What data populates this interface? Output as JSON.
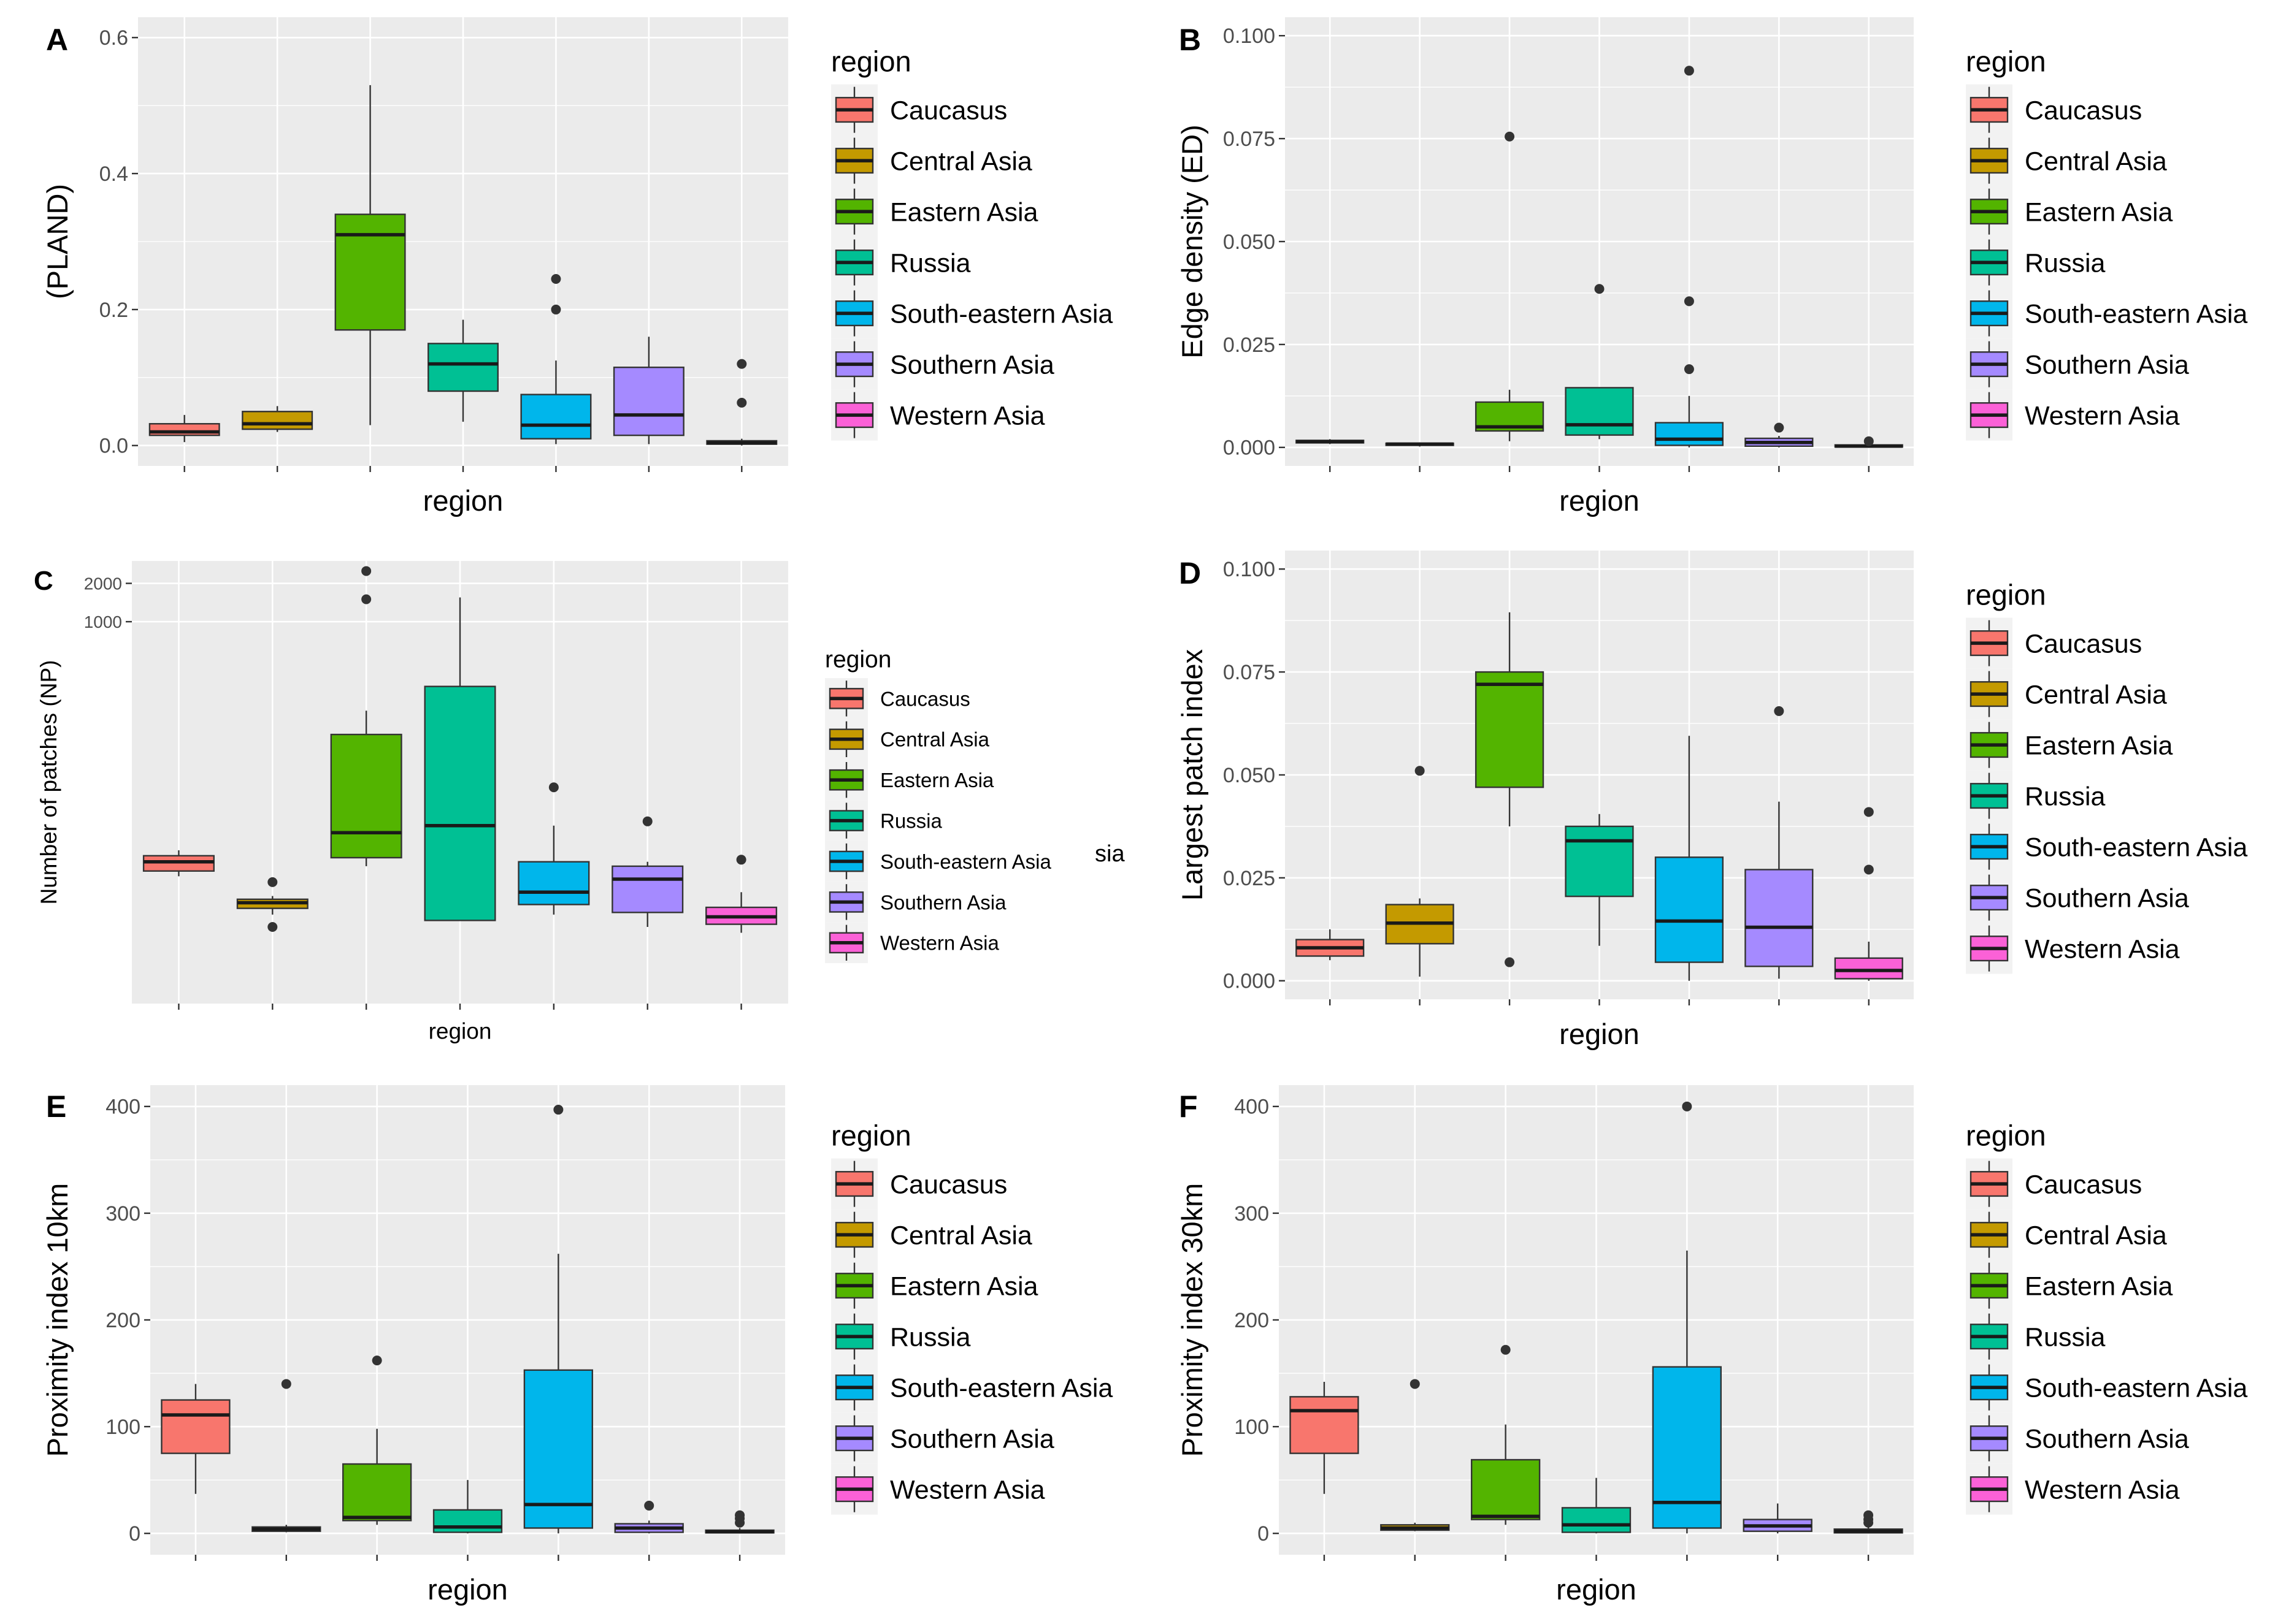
{
  "figure": {
    "legend_title": "region",
    "regions": [
      "Caucasus",
      "Central Asia",
      "Eastern Asia",
      "Russia",
      "South-eastern Asia",
      "Southern Asia",
      "Western Asia"
    ],
    "colors": [
      "#F8766D",
      "#C49A00",
      "#53B400",
      "#00C094",
      "#00B6EB",
      "#A58AFF",
      "#FB61D7"
    ],
    "stray_text": "sia"
  },
  "chart_data": [
    {
      "panel": "A",
      "type": "box",
      "title": "",
      "xlabel": "region",
      "ylabel": "(PLAND)",
      "ylim": [
        -0.03,
        0.63
      ],
      "yticks": [
        0.0,
        0.2,
        0.4,
        0.6
      ],
      "ytick_labels": [
        "0.0",
        "0.2",
        "0.4",
        "0.6"
      ],
      "categories": [
        "Caucasus",
        "Central Asia",
        "Eastern Asia",
        "Russia",
        "South-eastern Asia",
        "Southern Asia",
        "Western Asia"
      ],
      "boxes": [
        {
          "low": 0.005,
          "q1": 0.015,
          "median": 0.02,
          "q3": 0.032,
          "high": 0.045,
          "outliers": []
        },
        {
          "low": 0.02,
          "q1": 0.024,
          "median": 0.032,
          "q3": 0.05,
          "high": 0.058,
          "outliers": []
        },
        {
          "low": 0.03,
          "q1": 0.17,
          "median": 0.31,
          "q3": 0.34,
          "high": 0.53,
          "outliers": []
        },
        {
          "low": 0.035,
          "q1": 0.08,
          "median": 0.12,
          "q3": 0.15,
          "high": 0.185,
          "outliers": []
        },
        {
          "low": 0.002,
          "q1": 0.01,
          "median": 0.03,
          "q3": 0.075,
          "high": 0.125,
          "outliers": [
            0.2,
            0.245
          ]
        },
        {
          "low": 0.002,
          "q1": 0.015,
          "median": 0.045,
          "q3": 0.115,
          "high": 0.16,
          "outliers": []
        },
        {
          "low": 0.0,
          "q1": 0.002,
          "median": 0.004,
          "q3": 0.007,
          "high": 0.01,
          "outliers": [
            0.063,
            0.12
          ]
        }
      ]
    },
    {
      "panel": "B",
      "type": "box",
      "title": "",
      "xlabel": "region",
      "ylabel": "Edge density (ED)",
      "ylim": [
        -0.0045,
        0.1045
      ],
      "yticks": [
        0.0,
        0.025,
        0.05,
        0.075,
        0.1
      ],
      "ytick_labels": [
        "0.000",
        "0.025",
        "0.050",
        "0.075",
        "0.100"
      ],
      "categories": [
        "Caucasus",
        "Central Asia",
        "Eastern Asia",
        "Russia",
        "South-eastern Asia",
        "Southern Asia",
        "Western Asia"
      ],
      "boxes": [
        {
          "low": 0.0008,
          "q1": 0.0011,
          "median": 0.0014,
          "q3": 0.0017,
          "high": 0.002,
          "outliers": []
        },
        {
          "low": 0.0002,
          "q1": 0.0005,
          "median": 0.0008,
          "q3": 0.001,
          "high": 0.0012,
          "outliers": []
        },
        {
          "low": 0.0015,
          "q1": 0.004,
          "median": 0.005,
          "q3": 0.011,
          "high": 0.014,
          "outliers": [
            0.0755
          ]
        },
        {
          "low": 0.002,
          "q1": 0.003,
          "median": 0.0055,
          "q3": 0.0145,
          "high": 0.0145,
          "outliers": [
            0.0385
          ]
        },
        {
          "low": 0.0,
          "q1": 0.0005,
          "median": 0.002,
          "q3": 0.006,
          "high": 0.0125,
          "outliers": [
            0.019,
            0.0355,
            0.0915
          ]
        },
        {
          "low": 0.0,
          "q1": 0.0003,
          "median": 0.0012,
          "q3": 0.0022,
          "high": 0.0028,
          "outliers": [
            0.0048
          ]
        },
        {
          "low": 0.0,
          "q1": 0.0001,
          "median": 0.0003,
          "q3": 0.0006,
          "high": 0.0008,
          "outliers": [
            0.0015
          ]
        }
      ]
    },
    {
      "panel": "C",
      "type": "box",
      "title": "",
      "xlabel": "region",
      "ylabel": "Number of patches (NP)",
      "ylim": [
        1,
        3000
      ],
      "scale": "log10",
      "yticks": [
        1000,
        2000
      ],
      "ytick_labels": [
        "1000",
        "2000"
      ],
      "categories": [
        "Caucasus",
        "Central Asia",
        "Eastern Asia",
        "Russia",
        "South-eastern Asia",
        "Southern Asia",
        "Western Asia"
      ],
      "boxes": [
        {
          "low": 10,
          "q1": 11,
          "median": 13,
          "q3": 14.5,
          "high": 16,
          "outliers": []
        },
        {
          "low": 5,
          "q1": 5.6,
          "median": 6.2,
          "q3": 6.6,
          "high": 7,
          "outliers": [
            4,
            9
          ]
        },
        {
          "low": 12,
          "q1": 14,
          "median": 22,
          "q3": 130,
          "high": 200,
          "outliers": [
            1500,
            2500
          ]
        },
        {
          "low": 4.5,
          "q1": 4.5,
          "median": 25,
          "q3": 310,
          "high": 1550,
          "outliers": []
        },
        {
          "low": 5,
          "q1": 6,
          "median": 7.5,
          "q3": 13,
          "high": 25,
          "outliers": [
            50
          ]
        },
        {
          "low": 4,
          "q1": 5.2,
          "median": 9.5,
          "q3": 12,
          "high": 13,
          "outliers": [
            27
          ]
        },
        {
          "low": 3.6,
          "q1": 4.2,
          "median": 4.8,
          "q3": 5.7,
          "high": 7.5,
          "outliers": [
            13.5
          ]
        }
      ]
    },
    {
      "panel": "D",
      "type": "box",
      "title": "",
      "xlabel": "region",
      "ylabel": "Largest patch index",
      "ylim": [
        -0.0045,
        0.1045
      ],
      "yticks": [
        0.0,
        0.025,
        0.05,
        0.075,
        0.1
      ],
      "ytick_labels": [
        "0.000",
        "0.025",
        "0.050",
        "0.075",
        "0.100"
      ],
      "categories": [
        "Caucasus",
        "Central Asia",
        "Eastern Asia",
        "Russia",
        "South-eastern Asia",
        "Southern Asia",
        "Western Asia"
      ],
      "boxes": [
        {
          "low": 0.005,
          "q1": 0.006,
          "median": 0.008,
          "q3": 0.01,
          "high": 0.0125,
          "outliers": []
        },
        {
          "low": 0.001,
          "q1": 0.009,
          "median": 0.014,
          "q3": 0.0185,
          "high": 0.02,
          "outliers": [
            0.051
          ]
        },
        {
          "low": 0.0375,
          "q1": 0.047,
          "median": 0.072,
          "q3": 0.075,
          "high": 0.0895,
          "outliers": [
            0.0045
          ]
        },
        {
          "low": 0.0085,
          "q1": 0.0205,
          "median": 0.034,
          "q3": 0.0375,
          "high": 0.0405,
          "outliers": []
        },
        {
          "low": 0.0,
          "q1": 0.0045,
          "median": 0.0145,
          "q3": 0.03,
          "high": 0.0595,
          "outliers": []
        },
        {
          "low": 0.0005,
          "q1": 0.0035,
          "median": 0.013,
          "q3": 0.027,
          "high": 0.0435,
          "outliers": [
            0.0655
          ]
        },
        {
          "low": 0.0,
          "q1": 0.0005,
          "median": 0.0025,
          "q3": 0.0055,
          "high": 0.0095,
          "outliers": [
            0.027,
            0.041
          ]
        }
      ]
    },
    {
      "panel": "E",
      "type": "box",
      "title": "",
      "xlabel": "region",
      "ylabel": "Proximity index 10km",
      "ylim": [
        -20,
        420
      ],
      "yticks": [
        0,
        100,
        200,
        300,
        400
      ],
      "ytick_labels": [
        "0",
        "100",
        "200",
        "300",
        "400"
      ],
      "categories": [
        "Caucasus",
        "Central Asia",
        "Eastern Asia",
        "Russia",
        "South-eastern Asia",
        "Southern Asia",
        "Western Asia"
      ],
      "boxes": [
        {
          "low": 37,
          "q1": 75,
          "median": 111,
          "q3": 125,
          "high": 140,
          "outliers": []
        },
        {
          "low": 1,
          "q1": 2,
          "median": 4,
          "q3": 6,
          "high": 8,
          "outliers": [
            140
          ]
        },
        {
          "low": 8,
          "q1": 12,
          "median": 15,
          "q3": 65,
          "high": 98,
          "outliers": [
            162
          ]
        },
        {
          "low": 0,
          "q1": 1,
          "median": 6,
          "q3": 22,
          "high": 50,
          "outliers": []
        },
        {
          "low": 0,
          "q1": 5,
          "median": 27,
          "q3": 153,
          "high": 262,
          "outliers": [
            397
          ]
        },
        {
          "low": 0,
          "q1": 1,
          "median": 5,
          "q3": 9,
          "high": 12,
          "outliers": [
            26
          ]
        },
        {
          "low": 0,
          "q1": 0.5,
          "median": 1.5,
          "q3": 3,
          "high": 5,
          "outliers": [
            10,
            14,
            17
          ]
        }
      ]
    },
    {
      "panel": "F",
      "type": "box",
      "title": "",
      "xlabel": "region",
      "ylabel": "Proximity index 30km",
      "ylim": [
        -20,
        420
      ],
      "yticks": [
        0,
        100,
        200,
        300,
        400
      ],
      "ytick_labels": [
        "0",
        "100",
        "200",
        "300",
        "400"
      ],
      "categories": [
        "Caucasus",
        "Central Asia",
        "Eastern Asia",
        "Russia",
        "South-eastern Asia",
        "Southern Asia",
        "Western Asia"
      ],
      "boxes": [
        {
          "low": 37,
          "q1": 75,
          "median": 115,
          "q3": 128,
          "high": 142,
          "outliers": []
        },
        {
          "low": 2,
          "q1": 3,
          "median": 5,
          "q3": 8,
          "high": 10,
          "outliers": [
            140
          ]
        },
        {
          "low": 8,
          "q1": 13,
          "median": 16,
          "q3": 69,
          "high": 102,
          "outliers": [
            172
          ]
        },
        {
          "low": 0,
          "q1": 1,
          "median": 8,
          "q3": 24,
          "high": 52,
          "outliers": []
        },
        {
          "low": 0,
          "q1": 5,
          "median": 29,
          "q3": 156,
          "high": 265,
          "outliers": [
            400
          ]
        },
        {
          "low": 0,
          "q1": 2,
          "median": 7,
          "q3": 13,
          "high": 28,
          "outliers": []
        },
        {
          "low": 0,
          "q1": 0.5,
          "median": 2,
          "q3": 4,
          "high": 6,
          "outliers": [
            10,
            13,
            17
          ]
        }
      ]
    }
  ]
}
